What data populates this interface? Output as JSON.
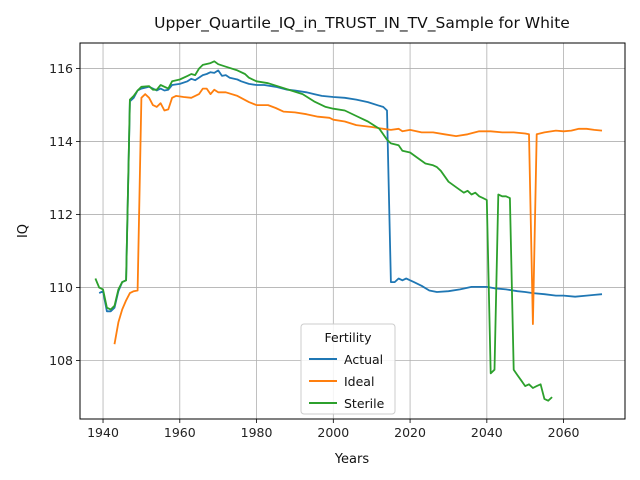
{
  "chart_data": {
    "type": "line",
    "title": "Upper_Quartile_IQ_in_TRUST_IN_TV_Sample for White",
    "xlabel": "Years",
    "ylabel": "IQ",
    "xlim": [
      1934,
      2076
    ],
    "ylim": [
      106.4,
      116.7
    ],
    "xticks": [
      1940,
      1960,
      1980,
      2000,
      2020,
      2040,
      2060
    ],
    "yticks": [
      108,
      110,
      112,
      114,
      116
    ],
    "grid": true,
    "legend": {
      "title": "Fertility",
      "placement": "lower center"
    },
    "series": [
      {
        "name": "Actual",
        "color": "#1f77b4",
        "points": [
          [
            1939,
            109.85
          ],
          [
            1940,
            109.9
          ],
          [
            1941,
            109.35
          ],
          [
            1942,
            109.35
          ],
          [
            1943,
            109.45
          ],
          [
            1944,
            109.9
          ],
          [
            1945,
            110.15
          ],
          [
            1946,
            110.2
          ],
          [
            1947,
            115.1
          ],
          [
            1948,
            115.2
          ],
          [
            1949,
            115.4
          ],
          [
            1950,
            115.45
          ],
          [
            1952,
            115.5
          ],
          [
            1953,
            115.45
          ],
          [
            1954,
            115.4
          ],
          [
            1955,
            115.45
          ],
          [
            1956,
            115.4
          ],
          [
            1957,
            115.42
          ],
          [
            1958,
            115.55
          ],
          [
            1960,
            115.58
          ],
          [
            1962,
            115.65
          ],
          [
            1963,
            115.72
          ],
          [
            1964,
            115.68
          ],
          [
            1966,
            115.82
          ],
          [
            1967,
            115.85
          ],
          [
            1968,
            115.9
          ],
          [
            1969,
            115.88
          ],
          [
            1970,
            115.95
          ],
          [
            1971,
            115.8
          ],
          [
            1972,
            115.82
          ],
          [
            1973,
            115.75
          ],
          [
            1975,
            115.7
          ],
          [
            1976,
            115.65
          ],
          [
            1978,
            115.58
          ],
          [
            1980,
            115.55
          ],
          [
            1982,
            115.55
          ],
          [
            1985,
            115.5
          ],
          [
            1988,
            115.42
          ],
          [
            1990,
            115.4
          ],
          [
            1993,
            115.35
          ],
          [
            1995,
            115.3
          ],
          [
            1997,
            115.25
          ],
          [
            2000,
            115.22
          ],
          [
            2003,
            115.2
          ],
          [
            2006,
            115.15
          ],
          [
            2009,
            115.08
          ],
          [
            2012,
            114.98
          ],
          [
            2013,
            114.95
          ],
          [
            2014,
            114.85
          ],
          [
            2015,
            110.15
          ],
          [
            2016,
            110.15
          ],
          [
            2017,
            110.25
          ],
          [
            2018,
            110.2
          ],
          [
            2019,
            110.25
          ],
          [
            2020,
            110.2
          ],
          [
            2021,
            110.15
          ],
          [
            2023,
            110.05
          ],
          [
            2025,
            109.92
          ],
          [
            2027,
            109.88
          ],
          [
            2030,
            109.9
          ],
          [
            2033,
            109.95
          ],
          [
            2036,
            110.02
          ],
          [
            2040,
            110.02
          ],
          [
            2042,
            109.98
          ],
          [
            2045,
            109.95
          ],
          [
            2048,
            109.9
          ],
          [
            2050,
            109.88
          ],
          [
            2052,
            109.85
          ],
          [
            2055,
            109.82
          ],
          [
            2058,
            109.78
          ],
          [
            2060,
            109.78
          ],
          [
            2063,
            109.75
          ],
          [
            2066,
            109.78
          ],
          [
            2068,
            109.8
          ],
          [
            2070,
            109.82
          ]
        ]
      },
      {
        "name": "Ideal",
        "color": "#ff7f0e",
        "points": [
          [
            1943,
            108.45
          ],
          [
            1944,
            109.05
          ],
          [
            1945,
            109.4
          ],
          [
            1946,
            109.65
          ],
          [
            1947,
            109.85
          ],
          [
            1948,
            109.9
          ],
          [
            1949,
            109.92
          ],
          [
            1950,
            115.2
          ],
          [
            1951,
            115.3
          ],
          [
            1952,
            115.2
          ],
          [
            1953,
            115.0
          ],
          [
            1954,
            114.95
          ],
          [
            1955,
            115.05
          ],
          [
            1956,
            114.85
          ],
          [
            1957,
            114.88
          ],
          [
            1958,
            115.2
          ],
          [
            1959,
            115.25
          ],
          [
            1961,
            115.22
          ],
          [
            1963,
            115.2
          ],
          [
            1965,
            115.3
          ],
          [
            1966,
            115.45
          ],
          [
            1967,
            115.45
          ],
          [
            1968,
            115.3
          ],
          [
            1969,
            115.42
          ],
          [
            1970,
            115.35
          ],
          [
            1972,
            115.35
          ],
          [
            1975,
            115.25
          ],
          [
            1978,
            115.08
          ],
          [
            1980,
            115.0
          ],
          [
            1983,
            115.0
          ],
          [
            1985,
            114.92
          ],
          [
            1987,
            114.82
          ],
          [
            1990,
            114.8
          ],
          [
            1993,
            114.75
          ],
          [
            1996,
            114.68
          ],
          [
            1999,
            114.65
          ],
          [
            2000,
            114.6
          ],
          [
            2003,
            114.55
          ],
          [
            2006,
            114.45
          ],
          [
            2010,
            114.4
          ],
          [
            2013,
            114.35
          ],
          [
            2015,
            114.32
          ],
          [
            2017,
            114.35
          ],
          [
            2018,
            114.28
          ],
          [
            2020,
            114.32
          ],
          [
            2023,
            114.25
          ],
          [
            2026,
            114.25
          ],
          [
            2029,
            114.2
          ],
          [
            2032,
            114.15
          ],
          [
            2035,
            114.2
          ],
          [
            2038,
            114.28
          ],
          [
            2041,
            114.28
          ],
          [
            2044,
            114.25
          ],
          [
            2047,
            114.25
          ],
          [
            2050,
            114.22
          ],
          [
            2051,
            114.2
          ],
          [
            2052,
            109.0
          ],
          [
            2053,
            114.2
          ],
          [
            2055,
            114.25
          ],
          [
            2058,
            114.3
          ],
          [
            2060,
            114.28
          ],
          [
            2062,
            114.3
          ],
          [
            2064,
            114.35
          ],
          [
            2066,
            114.35
          ],
          [
            2068,
            114.32
          ],
          [
            2070,
            114.3
          ]
        ]
      },
      {
        "name": "Sterile",
        "color": "#2ca02c",
        "points": [
          [
            1938,
            110.25
          ],
          [
            1939,
            110.0
          ],
          [
            1940,
            109.95
          ],
          [
            1941,
            109.45
          ],
          [
            1942,
            109.4
          ],
          [
            1943,
            109.5
          ],
          [
            1944,
            109.95
          ],
          [
            1945,
            110.15
          ],
          [
            1946,
            110.2
          ],
          [
            1947,
            115.15
          ],
          [
            1948,
            115.25
          ],
          [
            1949,
            115.4
          ],
          [
            1950,
            115.5
          ],
          [
            1952,
            115.52
          ],
          [
            1953,
            115.42
          ],
          [
            1954,
            115.42
          ],
          [
            1955,
            115.55
          ],
          [
            1957,
            115.45
          ],
          [
            1958,
            115.65
          ],
          [
            1960,
            115.7
          ],
          [
            1962,
            115.8
          ],
          [
            1963,
            115.85
          ],
          [
            1964,
            115.82
          ],
          [
            1965,
            116.0
          ],
          [
            1966,
            116.1
          ],
          [
            1968,
            116.15
          ],
          [
            1969,
            116.2
          ],
          [
            1970,
            116.12
          ],
          [
            1972,
            116.05
          ],
          [
            1975,
            115.95
          ],
          [
            1977,
            115.85
          ],
          [
            1978,
            115.75
          ],
          [
            1980,
            115.65
          ],
          [
            1983,
            115.6
          ],
          [
            1986,
            115.5
          ],
          [
            1989,
            115.4
          ],
          [
            1992,
            115.3
          ],
          [
            1995,
            115.1
          ],
          [
            1998,
            114.95
          ],
          [
            2000,
            114.9
          ],
          [
            2003,
            114.85
          ],
          [
            2006,
            114.7
          ],
          [
            2009,
            114.55
          ],
          [
            2012,
            114.35
          ],
          [
            2014,
            114.05
          ],
          [
            2015,
            113.95
          ],
          [
            2017,
            113.9
          ],
          [
            2018,
            113.75
          ],
          [
            2020,
            113.7
          ],
          [
            2022,
            113.55
          ],
          [
            2024,
            113.4
          ],
          [
            2026,
            113.35
          ],
          [
            2027,
            113.3
          ],
          [
            2028,
            113.2
          ],
          [
            2029,
            113.05
          ],
          [
            2030,
            112.9
          ],
          [
            2032,
            112.75
          ],
          [
            2034,
            112.6
          ],
          [
            2035,
            112.65
          ],
          [
            2036,
            112.55
          ],
          [
            2037,
            112.6
          ],
          [
            2038,
            112.5
          ],
          [
            2039,
            112.45
          ],
          [
            2040,
            112.4
          ],
          [
            2041,
            107.65
          ],
          [
            2042,
            107.75
          ],
          [
            2043,
            112.55
          ],
          [
            2044,
            112.5
          ],
          [
            2045,
            112.5
          ],
          [
            2046,
            112.45
          ],
          [
            2047,
            107.75
          ],
          [
            2048,
            107.6
          ],
          [
            2049,
            107.45
          ],
          [
            2050,
            107.3
          ],
          [
            2051,
            107.35
          ],
          [
            2052,
            107.25
          ],
          [
            2053,
            107.3
          ],
          [
            2054,
            107.35
          ],
          [
            2055,
            106.95
          ],
          [
            2056,
            106.9
          ],
          [
            2057,
            107.0
          ]
        ]
      }
    ]
  }
}
